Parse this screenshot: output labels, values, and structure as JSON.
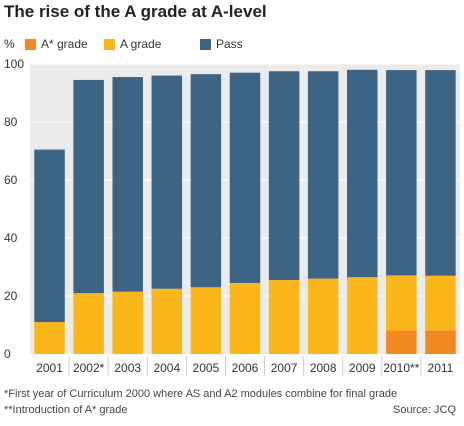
{
  "colors": {
    "astar": "#f28a1f",
    "a": "#fab61a",
    "pass": "#3d6583",
    "background": "#ebebeb",
    "grid": "#ffffff"
  },
  "chart_data": {
    "type": "bar",
    "stacked": true,
    "title": "The rise of the A grade at A-level",
    "ylabel": "%",
    "ylim": [
      0,
      100
    ],
    "yticks": [
      0,
      20,
      40,
      60,
      80,
      100
    ],
    "grid": true,
    "legend_position": "top",
    "categories": [
      "2001",
      "2002*",
      "2003",
      "2004",
      "2005",
      "2006",
      "2007",
      "2008",
      "2009",
      "2010**",
      "2011"
    ],
    "series": [
      {
        "name": "A* grade",
        "color": "#f28a1f",
        "values": [
          0,
          0,
          0,
          0,
          0,
          0,
          0,
          0,
          0,
          8.1,
          8.2
        ]
      },
      {
        "name": "A grade",
        "color": "#fab61a",
        "values": [
          11,
          21,
          21.5,
          22.5,
          23,
          24.5,
          25.5,
          26,
          26.5,
          19,
          18.8
        ]
      },
      {
        "name": "Pass",
        "color": "#3d6583",
        "values": [
          59.5,
          73.5,
          74,
          73.5,
          73.5,
          72.5,
          72,
          71.5,
          71.5,
          70.8,
          70.9
        ]
      }
    ]
  },
  "footnotes": {
    "note1": "*First year of Curriculum 2000 where AS and A2 modules combine for final grade",
    "note2": "**Introduction of A* grade",
    "source": "Source: JCQ"
  }
}
